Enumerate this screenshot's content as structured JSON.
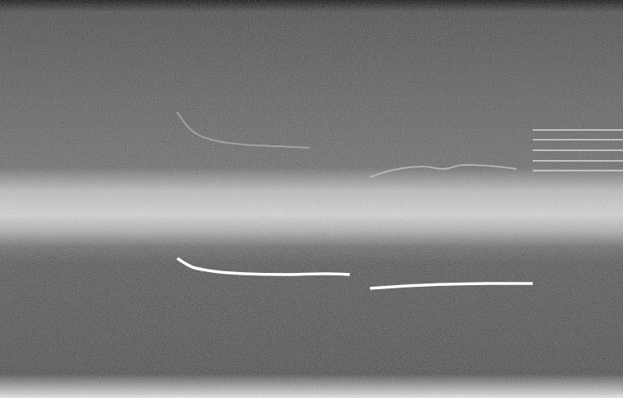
{
  "chart_data": {
    "type": "line",
    "xlim": [
      0,
      766
    ],
    "ylim": [
      0,
      490
    ],
    "tick_labels": false,
    "grid": false,
    "series": [
      {
        "color": "#ffffff",
        "x": [
          218,
          240,
          300,
          350,
          400,
          430
        ],
        "values": [
          172,
          160,
          153,
          152,
          153,
          152
        ]
      },
      {
        "color": "#ffffff",
        "x": [
          455,
          500,
          550,
          600,
          655
        ],
        "values": [
          135,
          138,
          140,
          141,
          141
        ]
      },
      {
        "color": "#c4c4c4",
        "x": [
          455,
          480,
          520,
          545,
          570,
          600,
          635
        ],
        "values": [
          272,
          280,
          285,
          282,
          287,
          286,
          282
        ]
      },
      {
        "color": "#b0b0b0",
        "x": [
          218,
          230,
          260,
          300,
          340,
          380
        ],
        "values": [
          352,
          335,
          318,
          312,
          310,
          308
        ]
      },
      {
        "color": "#d8d8d8",
        "x": [
          655,
          766
        ],
        "values": [
          330,
          330
        ]
      },
      {
        "color": "#d8d8d8",
        "x": [
          655,
          766
        ],
        "values": [
          318,
          318
        ]
      },
      {
        "color": "#d8d8d8",
        "x": [
          655,
          766
        ],
        "values": [
          305,
          305
        ]
      },
      {
        "color": "#d8d8d8",
        "x": [
          655,
          766
        ],
        "values": [
          292,
          292
        ]
      },
      {
        "color": "#d8d8d8",
        "x": [
          655,
          766
        ],
        "values": [
          280,
          280
        ]
      }
    ]
  }
}
